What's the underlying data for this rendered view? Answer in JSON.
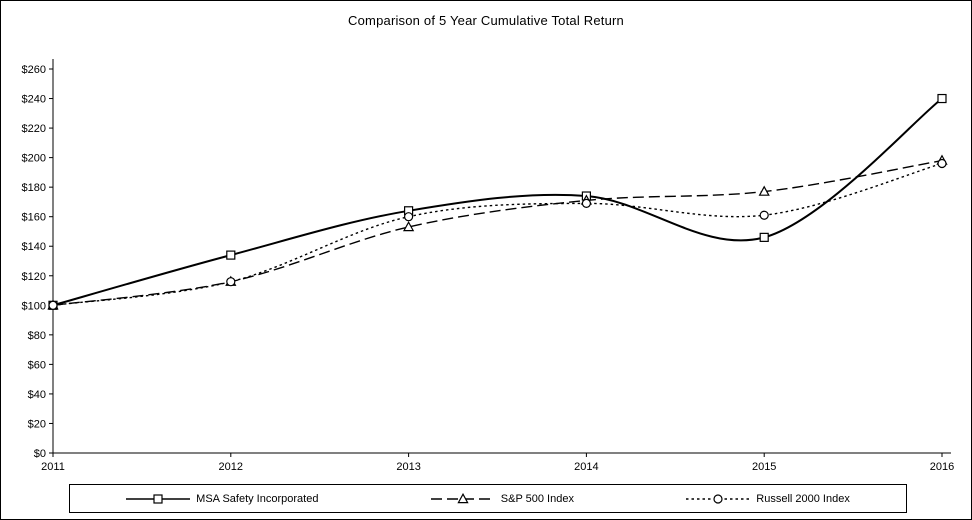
{
  "chart": {
    "title": "Comparison of 5 Year Cumulative Total Return",
    "chart_data": {
      "type": "line",
      "categories": [
        "2011",
        "2012",
        "2013",
        "2014",
        "2015",
        "2016"
      ],
      "series": [
        {
          "name": "MSA Safety Incorporated",
          "marker": "square",
          "dash": "solid",
          "values": [
            100,
            134,
            164,
            174,
            146,
            240
          ]
        },
        {
          "name": "S&P 500 Index",
          "marker": "triangle",
          "dash": "dashed",
          "values": [
            100,
            116,
            153,
            171,
            177,
            198
          ]
        },
        {
          "name": "Russell 2000 Index",
          "marker": "circle",
          "dash": "dotted",
          "values": [
            100,
            116,
            160,
            169,
            161,
            196
          ]
        }
      ],
      "ylim": [
        0,
        260
      ],
      "ytick_step": 20,
      "ytick_labels": [
        "$0",
        "$20",
        "$40",
        "$60",
        "$80",
        "$100",
        "$120",
        "$140",
        "$160",
        "$180",
        "$200",
        "$220",
        "$240",
        "$260"
      ],
      "grid": false,
      "legend_position": "bottom",
      "line_color": "#000000",
      "background_color": "#ffffff"
    }
  }
}
